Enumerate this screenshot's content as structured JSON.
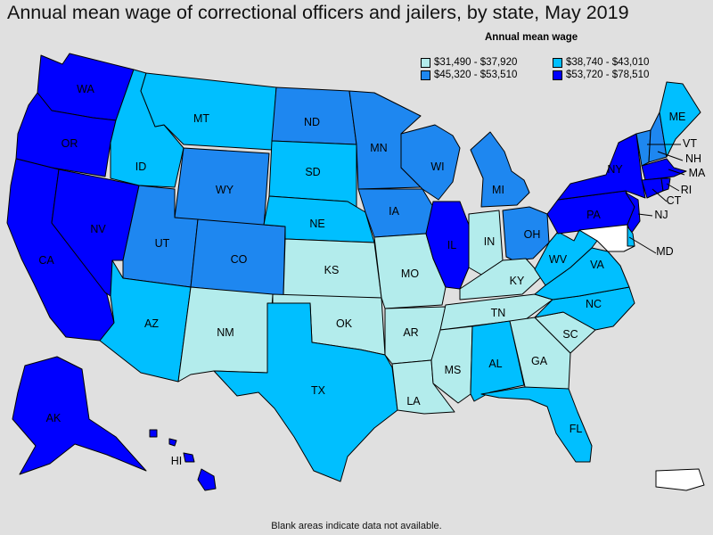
{
  "title": "Annual mean wage of correctional officers and jailers, by state, May 2019",
  "legend": {
    "title": "Annual mean wage",
    "items": [
      {
        "range": "$31,490 - $37,920",
        "color": "#b3ecec"
      },
      {
        "range": "$38,740 - $43,010",
        "color": "#00bfff"
      },
      {
        "range": "$45,320 - $53,510",
        "color": "#1e87f0"
      },
      {
        "range": "$53,720 - $78,510",
        "color": "#0000ff"
      }
    ]
  },
  "footnote": "Blank areas indicate data not available.",
  "states": {
    "WA": 3,
    "OR": 3,
    "CA": 3,
    "NV": 3,
    "AK": 3,
    "HI": 3,
    "IL": 3,
    "NY": 3,
    "PA": 3,
    "NJ": 3,
    "MA": 3,
    "CT": 3,
    "RI": 3,
    "WY": 2,
    "UT": 2,
    "CO": 2,
    "ND": 2,
    "MN": 2,
    "WI": 2,
    "MI": 2,
    "IA": 2,
    "OH": 2,
    "VT": 2,
    "NH": 2,
    "ID": 1,
    "MT": 1,
    "AZ": 1,
    "SD": 1,
    "NE": 1,
    "TX": 1,
    "AL": 1,
    "FL": 1,
    "WV": 1,
    "VA": 1,
    "NC": 1,
    "ME": 1,
    "DE": 1,
    "NM": 0,
    "KS": 0,
    "OK": 0,
    "MO": 0,
    "AR": 0,
    "LA": 0,
    "MS": 0,
    "TN": 0,
    "KY": 0,
    "IN": 0,
    "GA": 0,
    "SC": 0,
    "MD": -1,
    "PR": -1
  },
  "state_labels": [
    "WA",
    "OR",
    "CA",
    "NV",
    "ID",
    "MT",
    "WY",
    "UT",
    "AZ",
    "CO",
    "NM",
    "ND",
    "SD",
    "NE",
    "KS",
    "OK",
    "TX",
    "MN",
    "IA",
    "MO",
    "AR",
    "LA",
    "WI",
    "IL",
    "MI",
    "IN",
    "OH",
    "KY",
    "TN",
    "MS",
    "AL",
    "GA",
    "FL",
    "SC",
    "NC",
    "VA",
    "WV",
    "PA",
    "NY",
    "ME",
    "VT",
    "NH",
    "MA",
    "RI",
    "CT",
    "NJ",
    "MD",
    "AK",
    "HI"
  ]
}
